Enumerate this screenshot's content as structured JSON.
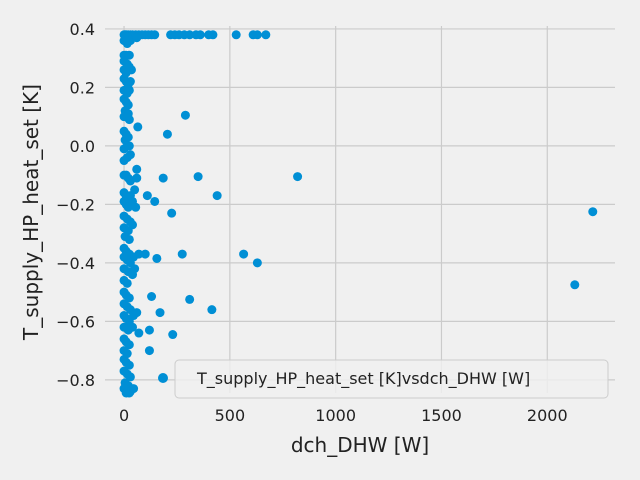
{
  "chart_data": {
    "type": "scatter",
    "xlabel": "dch_DHW [W]",
    "ylabel": "T_supply_HP_heat_set [K]",
    "xlim": [
      -90,
      2320
    ],
    "ylim": [
      -0.845,
      0.41
    ],
    "xticks": [
      0,
      500,
      1000,
      1500,
      2000
    ],
    "xtick_labels": [
      "0",
      "500",
      "1000",
      "1500",
      "2000"
    ],
    "yticks": [
      0.4,
      0.2,
      0.0,
      -0.2,
      -0.4,
      -0.6,
      -0.8
    ],
    "ytick_labels": [
      "0.4",
      "0.2",
      "0.0",
      "−0.2",
      "−0.4",
      "−0.6",
      "−0.8"
    ],
    "grid": true,
    "legend_position": "lower-right",
    "colors": {
      "marker": "#008fd5",
      "background": "#f0f0f0",
      "grid": "#cbcbcb"
    },
    "series": [
      {
        "name": "T_supply_HP_heat_set [K]vsdch_DHW [W]",
        "points": [
          [
            0,
            0.38
          ],
          [
            5,
            0.38
          ],
          [
            10,
            0.38
          ],
          [
            20,
            0.38
          ],
          [
            30,
            0.38
          ],
          [
            40,
            0.38
          ],
          [
            55,
            0.38
          ],
          [
            70,
            0.38
          ],
          [
            85,
            0.38
          ],
          [
            100,
            0.38
          ],
          [
            115,
            0.38
          ],
          [
            130,
            0.38
          ],
          [
            145,
            0.38
          ],
          [
            220,
            0.38
          ],
          [
            240,
            0.38
          ],
          [
            260,
            0.38
          ],
          [
            285,
            0.38
          ],
          [
            310,
            0.38
          ],
          [
            340,
            0.38
          ],
          [
            360,
            0.38
          ],
          [
            400,
            0.38
          ],
          [
            420,
            0.38
          ],
          [
            530,
            0.38
          ],
          [
            610,
            0.38
          ],
          [
            630,
            0.38
          ],
          [
            670,
            0.38
          ],
          [
            0,
            0.36
          ],
          [
            10,
            0.36
          ],
          [
            30,
            0.36
          ],
          [
            60,
            0.37
          ],
          [
            15,
            0.35
          ],
          [
            0,
            0.31
          ],
          [
            8,
            0.31
          ],
          [
            25,
            0.31
          ],
          [
            0,
            0.29
          ],
          [
            15,
            0.28
          ],
          [
            25,
            0.27
          ],
          [
            0,
            0.26
          ],
          [
            10,
            0.25
          ],
          [
            35,
            0.26
          ],
          [
            0,
            0.23
          ],
          [
            10,
            0.22
          ],
          [
            20,
            0.21
          ],
          [
            30,
            0.22
          ],
          [
            0,
            0.19
          ],
          [
            15,
            0.18
          ],
          [
            25,
            0.19
          ],
          [
            0,
            0.16
          ],
          [
            10,
            0.15
          ],
          [
            20,
            0.14
          ],
          [
            5,
            0.12
          ],
          [
            20,
            0.11
          ],
          [
            0,
            0.1
          ],
          [
            25,
            0.09
          ],
          [
            290,
            0.105
          ],
          [
            65,
            0.065
          ],
          [
            0,
            0.05
          ],
          [
            10,
            0.04
          ],
          [
            20,
            0.03
          ],
          [
            5,
            0.02
          ],
          [
            205,
            0.04
          ],
          [
            15,
            0.0
          ],
          [
            0,
            -0.01
          ],
          [
            25,
            0.0
          ],
          [
            0,
            -0.05
          ],
          [
            15,
            -0.04
          ],
          [
            30,
            -0.03
          ],
          [
            0,
            -0.1
          ],
          [
            10,
            -0.1
          ],
          [
            20,
            -0.11
          ],
          [
            30,
            -0.12
          ],
          [
            60,
            -0.08
          ],
          [
            60,
            -0.11
          ],
          [
            185,
            -0.11
          ],
          [
            350,
            -0.105
          ],
          [
            820,
            -0.105
          ],
          [
            0,
            -0.16
          ],
          [
            10,
            -0.17
          ],
          [
            20,
            -0.18
          ],
          [
            30,
            -0.17
          ],
          [
            50,
            -0.15
          ],
          [
            440,
            -0.17
          ],
          [
            110,
            -0.17
          ],
          [
            0,
            -0.19
          ],
          [
            10,
            -0.2
          ],
          [
            20,
            -0.21
          ],
          [
            40,
            -0.19
          ],
          [
            55,
            -0.21
          ],
          [
            145,
            -0.19
          ],
          [
            225,
            -0.23
          ],
          [
            2215,
            -0.225
          ],
          [
            0,
            -0.24
          ],
          [
            15,
            -0.25
          ],
          [
            30,
            -0.26
          ],
          [
            0,
            -0.28
          ],
          [
            20,
            -0.29
          ],
          [
            40,
            -0.27
          ],
          [
            5,
            -0.31
          ],
          [
            25,
            -0.32
          ],
          [
            0,
            -0.35
          ],
          [
            10,
            -0.36
          ],
          [
            25,
            -0.37
          ],
          [
            45,
            -0.38
          ],
          [
            70,
            -0.37
          ],
          [
            100,
            -0.37
          ],
          [
            155,
            -0.385
          ],
          [
            275,
            -0.37
          ],
          [
            565,
            -0.37
          ],
          [
            630,
            -0.4
          ],
          [
            0,
            -0.38
          ],
          [
            15,
            -0.39
          ],
          [
            30,
            -0.4
          ],
          [
            0,
            -0.42
          ],
          [
            20,
            -0.43
          ],
          [
            50,
            -0.42
          ],
          [
            0,
            -0.46
          ],
          [
            15,
            -0.47
          ],
          [
            40,
            -0.44
          ],
          [
            2130,
            -0.475
          ],
          [
            0,
            -0.5
          ],
          [
            10,
            -0.51
          ],
          [
            25,
            -0.52
          ],
          [
            130,
            -0.515
          ],
          [
            310,
            -0.525
          ],
          [
            0,
            -0.54
          ],
          [
            15,
            -0.55
          ],
          [
            30,
            -0.56
          ],
          [
            170,
            -0.57
          ],
          [
            415,
            -0.56
          ],
          [
            0,
            -0.58
          ],
          [
            10,
            -0.59
          ],
          [
            25,
            -0.6
          ],
          [
            45,
            -0.58
          ],
          [
            60,
            -0.57
          ],
          [
            0,
            -0.62
          ],
          [
            20,
            -0.63
          ],
          [
            40,
            -0.62
          ],
          [
            120,
            -0.63
          ],
          [
            70,
            -0.64
          ],
          [
            230,
            -0.645
          ],
          [
            0,
            -0.66
          ],
          [
            10,
            -0.67
          ],
          [
            25,
            -0.68
          ],
          [
            0,
            -0.7
          ],
          [
            15,
            -0.71
          ],
          [
            120,
            -0.7
          ],
          [
            0,
            -0.73
          ],
          [
            10,
            -0.74
          ],
          [
            25,
            -0.75
          ],
          [
            0,
            -0.77
          ],
          [
            15,
            -0.78
          ],
          [
            30,
            -0.79
          ],
          [
            5,
            -0.81
          ],
          [
            20,
            -0.82
          ],
          [
            0,
            -0.83
          ],
          [
            15,
            -0.84
          ],
          [
            30,
            -0.84
          ],
          [
            10,
            -0.845
          ],
          [
            25,
            -0.845
          ],
          [
            45,
            -0.83
          ]
        ]
      }
    ]
  }
}
